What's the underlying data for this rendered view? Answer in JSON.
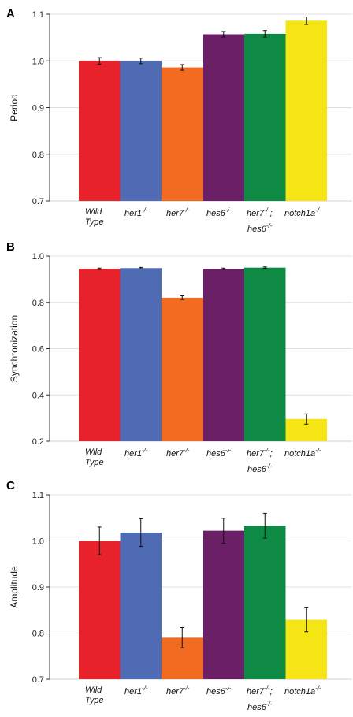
{
  "chart_data": [
    {
      "panel": "A",
      "type": "bar",
      "ylabel": "Period",
      "ylim": [
        0.7,
        1.1
      ],
      "yticks": [
        "0.7",
        "0.8",
        "0.9",
        "1.0",
        "1.1"
      ],
      "categories": [
        "Wild Type",
        "her1-/-",
        "her7-/-",
        "hes6-/-",
        "her7-/-; hes6-/-",
        "notch1a-/-"
      ],
      "values": [
        1.0,
        1.0,
        0.986,
        1.057,
        1.058,
        1.086
      ],
      "errors": [
        0.007,
        0.006,
        0.006,
        0.006,
        0.007,
        0.008
      ]
    },
    {
      "panel": "B",
      "type": "bar",
      "ylabel": "Synchronization",
      "ylim": [
        0.2,
        1.0
      ],
      "yticks": [
        "0.2",
        "0.4",
        "0.6",
        "0.8",
        "1.0"
      ],
      "categories": [
        "Wild Type",
        "her1-/-",
        "her7-/-",
        "hes6-/-",
        "her7-/-; hes6-/-",
        "notch1a-/-"
      ],
      "values": [
        0.945,
        0.948,
        0.82,
        0.945,
        0.95,
        0.296
      ],
      "errors": [
        0.003,
        0.003,
        0.008,
        0.003,
        0.003,
        0.022
      ]
    },
    {
      "panel": "C",
      "type": "bar",
      "ylabel": "Amplitude",
      "ylim": [
        0.7,
        1.1
      ],
      "yticks": [
        "0.7",
        "0.8",
        "0.9",
        "1.0",
        "1.1"
      ],
      "categories": [
        "Wild Type",
        "her1-/-",
        "her7-/-",
        "hes6-/-",
        "her7-/-; hes6-/-",
        "notch1a-/-"
      ],
      "values": [
        1.0,
        1.018,
        0.79,
        1.022,
        1.033,
        0.829
      ],
      "errors": [
        0.03,
        0.03,
        0.022,
        0.027,
        0.027,
        0.026
      ]
    }
  ],
  "colors": [
    "#e8222a",
    "#4f6bb4",
    "#f26b21",
    "#6b1f66",
    "#0e8a45",
    "#f5e514"
  ],
  "labels": {
    "cat0_line1": "Wild",
    "cat0_line2": "Type",
    "cat1": "her1",
    "cat2": "her7",
    "cat3": "hes6",
    "cat4_line1": "her7",
    "cat4_line2": "hes6",
    "cat4_sep": ";",
    "cat5": "notch1a",
    "superscript": "-/-"
  }
}
